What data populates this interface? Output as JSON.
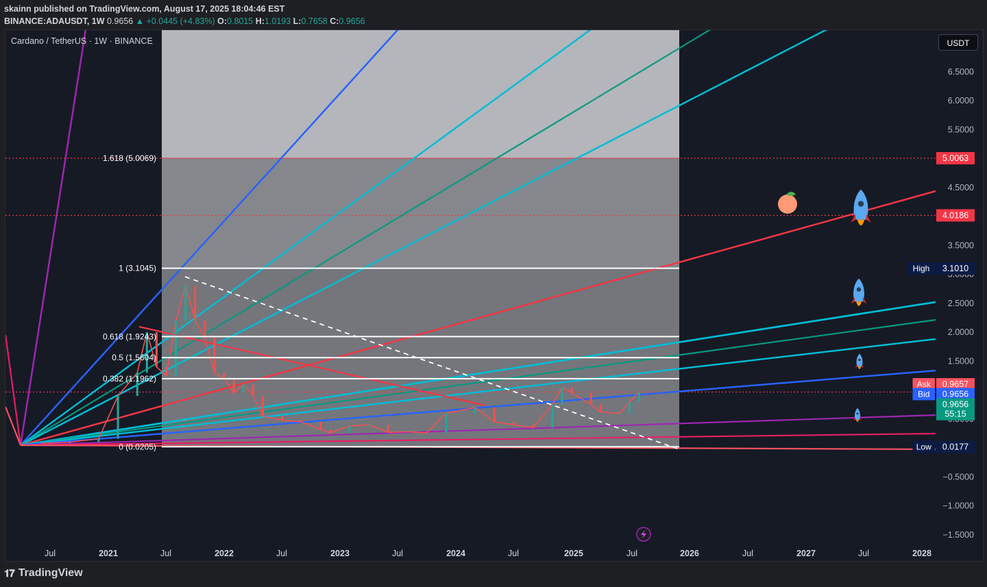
{
  "header": {
    "line1": "skainn published on TradingView.com, August 17, 2025 18:04:46 EST",
    "symbol": "BINANCE:ADAUSDT, 1W",
    "last": "0.9656",
    "change": "▲ +0.0445 (+4.83%)",
    "o_label": "O:",
    "o": "0.8015",
    "h_label": "H:",
    "h": "1.0193",
    "l_label": "L:",
    "l": "0.7658",
    "c_label": "C:",
    "c": "0.9656"
  },
  "chart_title": "Cardano / TetherUS · 1W · BINANCE",
  "currency_button": "USDT",
  "footer_brand": "TradingView",
  "chart_data": {
    "type": "line",
    "title": "Cardano / TetherUS · 1W · BINANCE",
    "x_ticks": [
      "Jul",
      "2021",
      "Jul",
      "2022",
      "Jul",
      "2023",
      "Jul",
      "2024",
      "Jul",
      "2025",
      "Jul",
      "2026",
      "Jul",
      "2027",
      "Jul",
      "2028"
    ],
    "y_ticks": [
      "6.5000",
      "6.0000",
      "5.5000",
      "5.0000",
      "4.5000",
      "4.0000",
      "3.5000",
      "3.0000",
      "2.5000",
      "2.0000",
      "1.5000",
      "1.0000",
      "0.5000",
      "0",
      "−0.5000",
      "−1.0000",
      "−1.5000"
    ],
    "ylim": [
      -1.65,
      6.9
    ],
    "price_tags": [
      {
        "label": "",
        "value": "5.0063",
        "y": 5.0063,
        "color": "#f23645"
      },
      {
        "label": "",
        "value": "4.0186",
        "y": 4.0186,
        "color": "#f23645"
      },
      {
        "label": "High",
        "value": "3.1010",
        "y": 3.101,
        "color": "#0c1b46"
      },
      {
        "label": "Ask",
        "value": "0.9657",
        "y": 1.1,
        "color": "#f7525f"
      },
      {
        "label": "Bid",
        "value": "0.9656",
        "y": 0.93,
        "color": "#2962ff"
      },
      {
        "label": "",
        "value": "0.9656",
        "y": 0.75,
        "color": "#089981",
        "sub": "55:15"
      },
      {
        "label": "Low",
        "value": "0.0177",
        "y": 0.0177,
        "color": "#0c1b46"
      }
    ],
    "fib_levels": [
      {
        "label": "1.618 (5.0069)",
        "value": 5.0069
      },
      {
        "label": "1 (3.1045)",
        "value": 3.1045
      },
      {
        "label": "0.618 (1.9243)",
        "value": 1.9243
      },
      {
        "label": "0.5 (1.5604)",
        "value": 1.5604
      },
      {
        "label": "0.382 (1.1962)",
        "value": 1.1962
      },
      {
        "label": "0 (0.0205)",
        "value": 0.0205
      }
    ],
    "series": [
      {
        "values": [
          [
            "2020-06",
            0.08
          ],
          [
            "2020-09",
            0.1
          ],
          [
            "2020-12",
            0.16
          ],
          [
            "2021-02",
            0.9
          ],
          [
            "2021-04",
            1.3
          ],
          [
            "2021-05",
            2.0
          ],
          [
            "2021-06",
            1.4
          ],
          [
            "2021-07",
            1.25
          ],
          [
            "2021-08",
            2.2
          ],
          [
            "2021-09",
            2.8
          ],
          [
            "2021-10",
            2.2
          ],
          [
            "2021-11",
            1.9
          ],
          [
            "2021-12",
            1.3
          ],
          [
            "2022-01",
            1.2
          ],
          [
            "2022-02",
            0.95
          ],
          [
            "2022-03",
            1.1
          ],
          [
            "2022-04",
            0.9
          ],
          [
            "2022-05",
            0.55
          ],
          [
            "2022-07",
            0.48
          ],
          [
            "2022-09",
            0.45
          ],
          [
            "2022-11",
            0.32
          ],
          [
            "2022-12",
            0.26
          ],
          [
            "2023-02",
            0.38
          ],
          [
            "2023-04",
            0.4
          ],
          [
            "2023-06",
            0.27
          ],
          [
            "2023-08",
            0.28
          ],
          [
            "2023-10",
            0.26
          ],
          [
            "2023-12",
            0.6
          ],
          [
            "2024-03",
            0.7
          ],
          [
            "2024-05",
            0.45
          ],
          [
            "2024-07",
            0.4
          ],
          [
            "2024-09",
            0.35
          ],
          [
            "2024-11",
            0.75
          ],
          [
            "2024-12",
            1.05
          ],
          [
            "2025-01",
            0.95
          ],
          [
            "2025-03",
            0.75
          ],
          [
            "2025-04",
            0.62
          ],
          [
            "2025-06",
            0.6
          ],
          [
            "2025-07",
            0.8
          ],
          [
            "2025-08",
            0.9656
          ]
        ]
      }
    ]
  }
}
